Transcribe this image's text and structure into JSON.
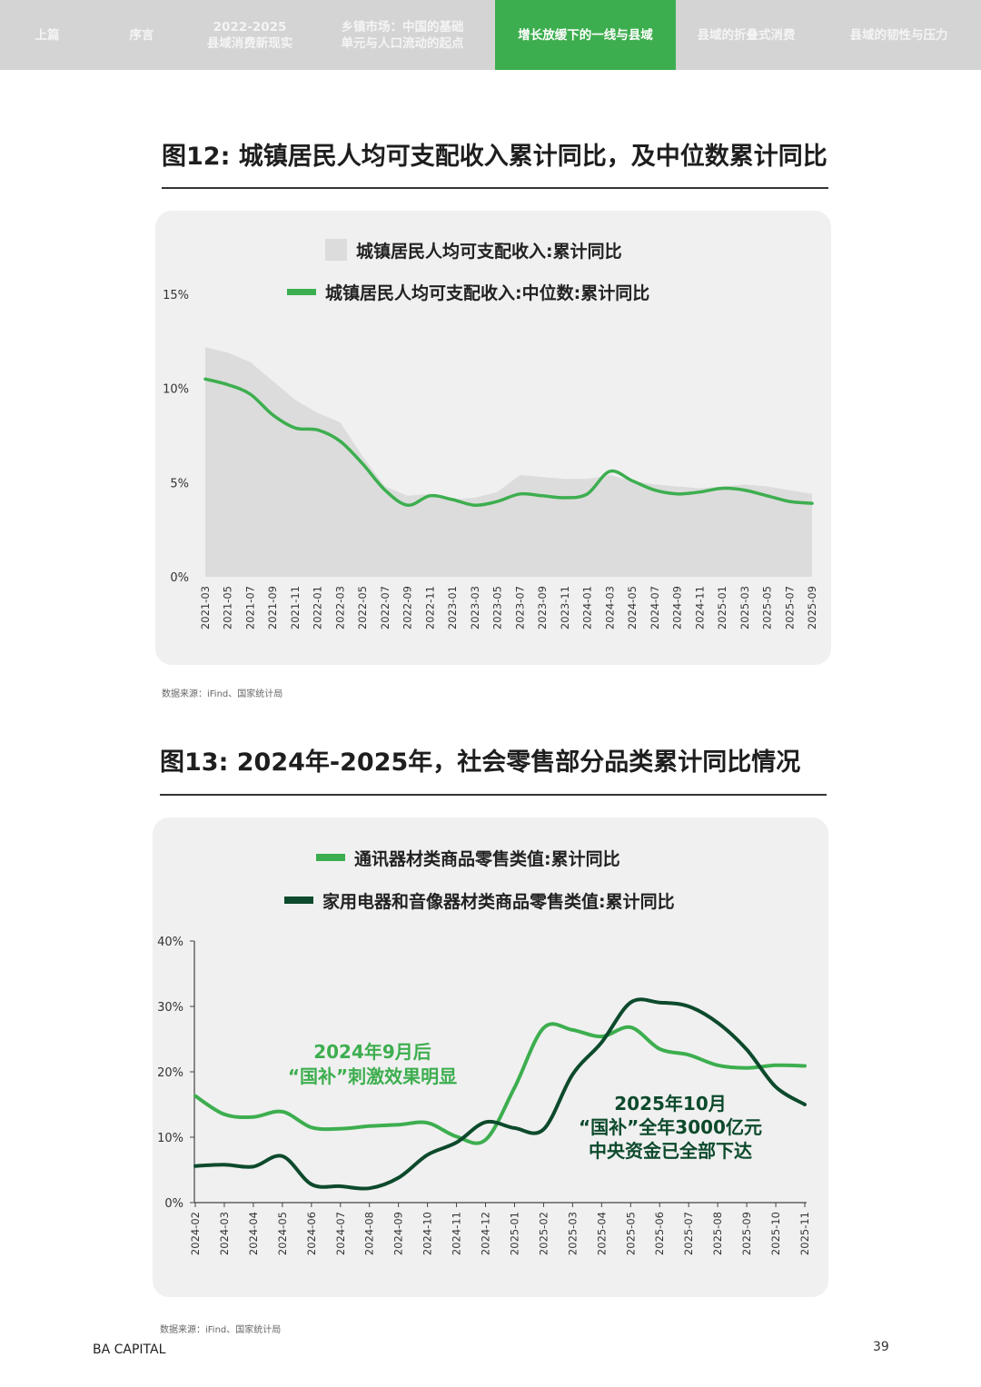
{
  "nav": {
    "tabs": [
      {
        "label": "上篇",
        "active": false
      },
      {
        "label": "序言",
        "active": false
      },
      {
        "label": "2022-2025\n县域消费新现实",
        "active": false
      },
      {
        "label": "乡镇市场：中国的基础\n单元与人口流动的起点",
        "active": false
      },
      {
        "label": "增长放缓下的一线与县域",
        "active": true
      },
      {
        "label": "县域的折叠式消费",
        "active": false
      },
      {
        "label": "县域的韧性与压力",
        "active": false
      }
    ]
  },
  "colors": {
    "light_green": "#3dae4f",
    "dark_green": "#0d4a2c",
    "area_gray": "#dcdcdc",
    "panel": "#f0f0f0"
  },
  "figures": [
    {
      "title": "图12: 城镇居民人均可支配收入累计同比，及中位数累计同比",
      "source": "数据来源：iFind、国家统计局"
    },
    {
      "title": "图13: 2024年-2025年，社会零售部分品类累计同比情况",
      "source": "数据来源：iFind、国家统计局"
    }
  ],
  "chart_data": [
    {
      "type": "area",
      "title": "",
      "xlabel": "",
      "ylabel": "",
      "ylim": [
        0,
        15
      ],
      "yticks": [
        "0%",
        "5%",
        "10%",
        "15%"
      ],
      "grid": false,
      "legend_position": "top",
      "x": [
        "2021-03",
        "2021-05",
        "2021-07",
        "2021-09",
        "2021-11",
        "2022-01",
        "2022-03",
        "2022-05",
        "2022-07",
        "2022-09",
        "2022-11",
        "2023-01",
        "2023-03",
        "2023-05",
        "2023-07",
        "2023-09",
        "2023-11",
        "2024-01",
        "2024-03",
        "2024-05",
        "2024-07",
        "2024-09",
        "2024-11",
        "2025-01",
        "2025-03",
        "2025-05",
        "2025-07",
        "2025-09"
      ],
      "series": [
        {
          "name": "城镇居民人均可支配收入:累计同比",
          "kind": "area",
          "color": "#dcdcdc",
          "values": [
            12.2,
            11.9,
            11.4,
            10.4,
            9.4,
            8.7,
            8.2,
            6.4,
            4.8,
            4.3,
            4.4,
            4.1,
            4.2,
            4.5,
            5.4,
            5.3,
            5.2,
            5.2,
            5.4,
            5.1,
            4.9,
            4.8,
            4.7,
            4.8,
            4.9,
            4.8,
            4.6,
            4.4
          ]
        },
        {
          "name": "城镇居民人均可支配收入:中位数:累计同比",
          "kind": "line",
          "color": "#3dae4f",
          "values": [
            10.5,
            10.2,
            9.7,
            8.6,
            7.9,
            7.8,
            7.2,
            6.0,
            4.6,
            3.8,
            4.3,
            4.1,
            3.8,
            4.0,
            4.4,
            4.3,
            4.2,
            4.4,
            5.6,
            5.1,
            4.6,
            4.4,
            4.5,
            4.7,
            4.6,
            4.3,
            4.0,
            3.9
          ]
        }
      ]
    },
    {
      "type": "line",
      "title": "",
      "xlabel": "",
      "ylabel": "",
      "ylim": [
        0,
        40
      ],
      "yticks": [
        "0%",
        "10%",
        "20%",
        "30%",
        "40%"
      ],
      "grid": false,
      "legend_position": "top",
      "x": [
        "2024-02",
        "2024-03",
        "2024-04",
        "2024-05",
        "2024-06",
        "2024-07",
        "2024-08",
        "2024-09",
        "2024-10",
        "2024-11",
        "2024-12",
        "2025-01",
        "2025-02",
        "2025-03",
        "2025-04",
        "2025-05",
        "2025-06",
        "2025-07",
        "2025-08",
        "2025-09",
        "2025-10",
        "2025-11"
      ],
      "series": [
        {
          "name": "通讯器材类商品零售类值:累计同比",
          "color": "#3dae4f",
          "values": [
            16.3,
            13.5,
            13.1,
            13.9,
            11.5,
            11.3,
            11.7,
            11.9,
            12.2,
            10.1,
            9.6,
            17.6,
            26.7,
            26.4,
            25.4,
            26.8,
            23.5,
            22.6,
            21.0,
            20.6,
            21.0,
            20.9
          ]
        },
        {
          "name": "家用电器和音像器材类商品零售类值:累计同比",
          "color": "#0d4a2c",
          "values": [
            5.6,
            5.8,
            5.5,
            7.1,
            2.8,
            2.5,
            2.2,
            3.8,
            7.3,
            9.2,
            12.3,
            11.4,
            11.2,
            19.6,
            24.5,
            30.6,
            30.6,
            30.0,
            27.5,
            23.4,
            17.7,
            15.0
          ]
        }
      ],
      "annotations": [
        {
          "lines": [
            "2024年9月后",
            "“国补”刺激效果明显"
          ],
          "color": "#3dae4f"
        },
        {
          "lines": [
            "2025年10月",
            "“国补”全年3000亿元",
            "中央资金已全部下达"
          ],
          "color": "#0d4a2c"
        }
      ]
    }
  ],
  "footer": {
    "brand": "BA CAPITAL",
    "page": "39"
  }
}
